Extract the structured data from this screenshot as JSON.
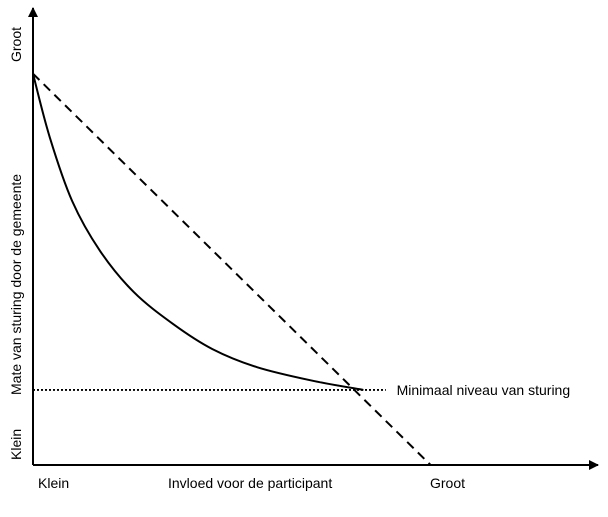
{
  "chart_data": {
    "type": "line",
    "title": "",
    "xlabel": "Invloed voor de participant",
    "ylabel": "Mate van sturing door de gemeente",
    "x_ticks": {
      "low": "Klein",
      "high": "Groot"
    },
    "y_ticks": {
      "low": "Klein",
      "high": "Groot"
    },
    "xlim": [
      0,
      1
    ],
    "ylim": [
      0,
      1
    ],
    "grid": false,
    "legend": "none",
    "series": [
      {
        "style": "solid",
        "points": [
          [
            0,
            0.86
          ],
          [
            0.03,
            0.72
          ],
          [
            0.07,
            0.58
          ],
          [
            0.12,
            0.47
          ],
          [
            0.18,
            0.38
          ],
          [
            0.25,
            0.31
          ],
          [
            0.32,
            0.255
          ],
          [
            0.4,
            0.215
          ],
          [
            0.5,
            0.185
          ],
          [
            0.59,
            0.165
          ]
        ]
      },
      {
        "style": "dashed",
        "points": [
          [
            0,
            0.86
          ],
          [
            0.71,
            0.0
          ]
        ]
      },
      {
        "style": "dotted",
        "points": [
          [
            0,
            0.165
          ],
          [
            0.63,
            0.165
          ]
        ]
      }
    ],
    "annotation": {
      "text": "Minimaal niveau van sturing",
      "x": 0.635,
      "y": 0.165
    }
  }
}
